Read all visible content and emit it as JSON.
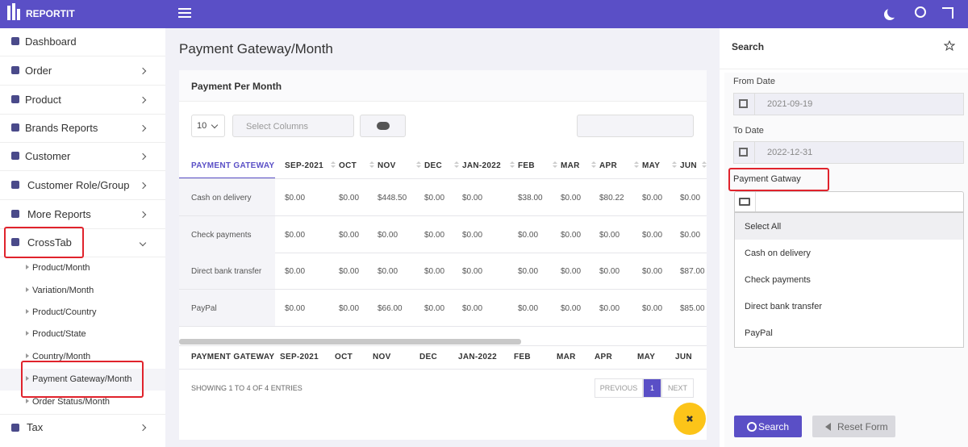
{
  "brand": "REPORTIT",
  "sidebar": {
    "items": [
      "Dashboard",
      "Order",
      "Product",
      "Brands Reports",
      "Customer",
      "Customer Role/Group",
      "More Reports",
      "CrossTab"
    ],
    "subitems": [
      "Product/Month",
      "Variation/Month",
      "Product/Country",
      "Product/State",
      "Country/Month",
      "Payment Gateway/Month",
      "Order Status/Month"
    ],
    "last": "Tax"
  },
  "page_title": "Payment Gateway/Month",
  "card": {
    "title": "Payment Per Month",
    "page_size": "10",
    "select_columns": "Select Columns"
  },
  "table": {
    "headers": [
      "PAYMENT GATEWAY",
      "SEP-2021",
      "OCT",
      "NOV",
      "DEC",
      "JAN-2022",
      "FEB",
      "MAR",
      "APR",
      "MAY",
      "JUN"
    ],
    "rows": [
      [
        "Cash on delivery",
        "$0.00",
        "$0.00",
        "$448.50",
        "$0.00",
        "$0.00",
        "$38.00",
        "$0.00",
        "$80.22",
        "$0.00",
        "$0.00"
      ],
      [
        "Check payments",
        "$0.00",
        "$0.00",
        "$0.00",
        "$0.00",
        "$0.00",
        "$0.00",
        "$0.00",
        "$0.00",
        "$0.00",
        "$0.00"
      ],
      [
        "Direct bank transfer",
        "$0.00",
        "$0.00",
        "$0.00",
        "$0.00",
        "$0.00",
        "$0.00",
        "$0.00",
        "$0.00",
        "$0.00",
        "$87.00"
      ],
      [
        "PayPal",
        "$0.00",
        "$0.00",
        "$66.00",
        "$0.00",
        "$0.00",
        "$0.00",
        "$0.00",
        "$0.00",
        "$0.00",
        "$85.00"
      ]
    ]
  },
  "info": "SHOWING 1 TO 4 OF 4 ENTRIES",
  "pagination": [
    "PREVIOUS",
    "1",
    "NEXT"
  ],
  "search": {
    "title": "Search",
    "from_label": "From Date",
    "from_value": "2021-09-19",
    "to_label": "To Date",
    "to_value": "2022-12-31",
    "gateway_label": "Payment Gatway",
    "options": [
      "Select All",
      "Cash on delivery",
      "Check payments",
      "Direct bank transfer",
      "PayPal"
    ],
    "search_button": "Search",
    "reset_button": "Reset Form"
  }
}
